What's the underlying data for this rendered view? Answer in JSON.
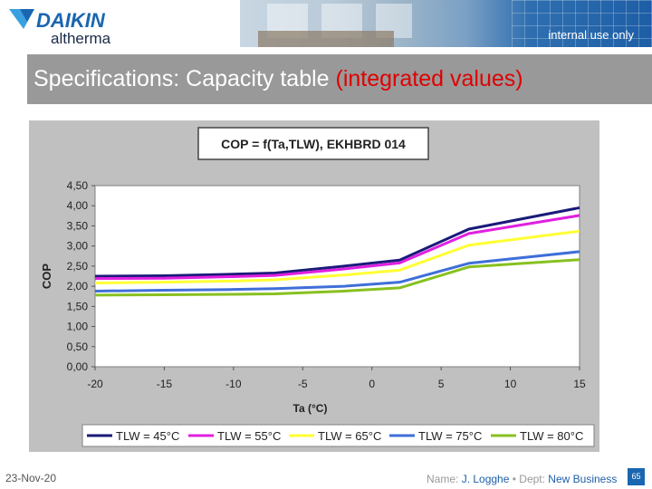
{
  "header": {
    "logo_brand": "DAIKIN",
    "logo_sub": "altherma",
    "badge": "internal use only"
  },
  "slide": {
    "title_main": "Specifications: Capacity table ",
    "title_highlight": "(integrated values)"
  },
  "chart_data": {
    "type": "line",
    "title": "COP = f(Ta,TLW), EKHBRD 014",
    "xlabel": "Ta (°C)",
    "ylabel": "COP",
    "xlim": [
      -20,
      15
    ],
    "ylim": [
      0,
      4.5
    ],
    "xticks": [
      "-20",
      "-15",
      "-10",
      "-5",
      "0",
      "5",
      "10",
      "15"
    ],
    "yticks": [
      "0,00",
      "0,50",
      "1,00",
      "1,50",
      "2,00",
      "2,50",
      "3,00",
      "3,50",
      "4,00",
      "4,50"
    ],
    "x": [
      -20,
      -15,
      -10,
      -7,
      -2,
      2,
      7,
      15
    ],
    "series": [
      {
        "name": "TLW = 45°C",
        "color": "#1a1a7a",
        "values": [
          2.25,
          2.26,
          2.3,
          2.33,
          2.5,
          2.65,
          3.42,
          3.95
        ]
      },
      {
        "name": "TLW = 55°C",
        "color": "#e020e0",
        "values": [
          2.19,
          2.2,
          2.24,
          2.27,
          2.43,
          2.58,
          3.31,
          3.76
        ]
      },
      {
        "name": "TLW = 65°C",
        "color": "#ffff33",
        "values": [
          2.08,
          2.1,
          2.13,
          2.16,
          2.28,
          2.4,
          3.02,
          3.37
        ]
      },
      {
        "name": "TLW = 75°C",
        "color": "#3f6fd8",
        "values": [
          1.88,
          1.9,
          1.92,
          1.94,
          2.0,
          2.1,
          2.57,
          2.86
        ]
      },
      {
        "name": "TLW = 80°C",
        "color": "#88c020",
        "values": [
          1.78,
          1.79,
          1.8,
          1.81,
          1.88,
          1.96,
          2.48,
          2.66
        ]
      }
    ],
    "grid": false,
    "legend": "bottom"
  },
  "footer": {
    "date": "23-Nov-20",
    "name_label": "Name: ",
    "name_value": "J. Logghe",
    "dept_label": " • Dept: ",
    "dept_value": "New Business",
    "page": "65"
  }
}
